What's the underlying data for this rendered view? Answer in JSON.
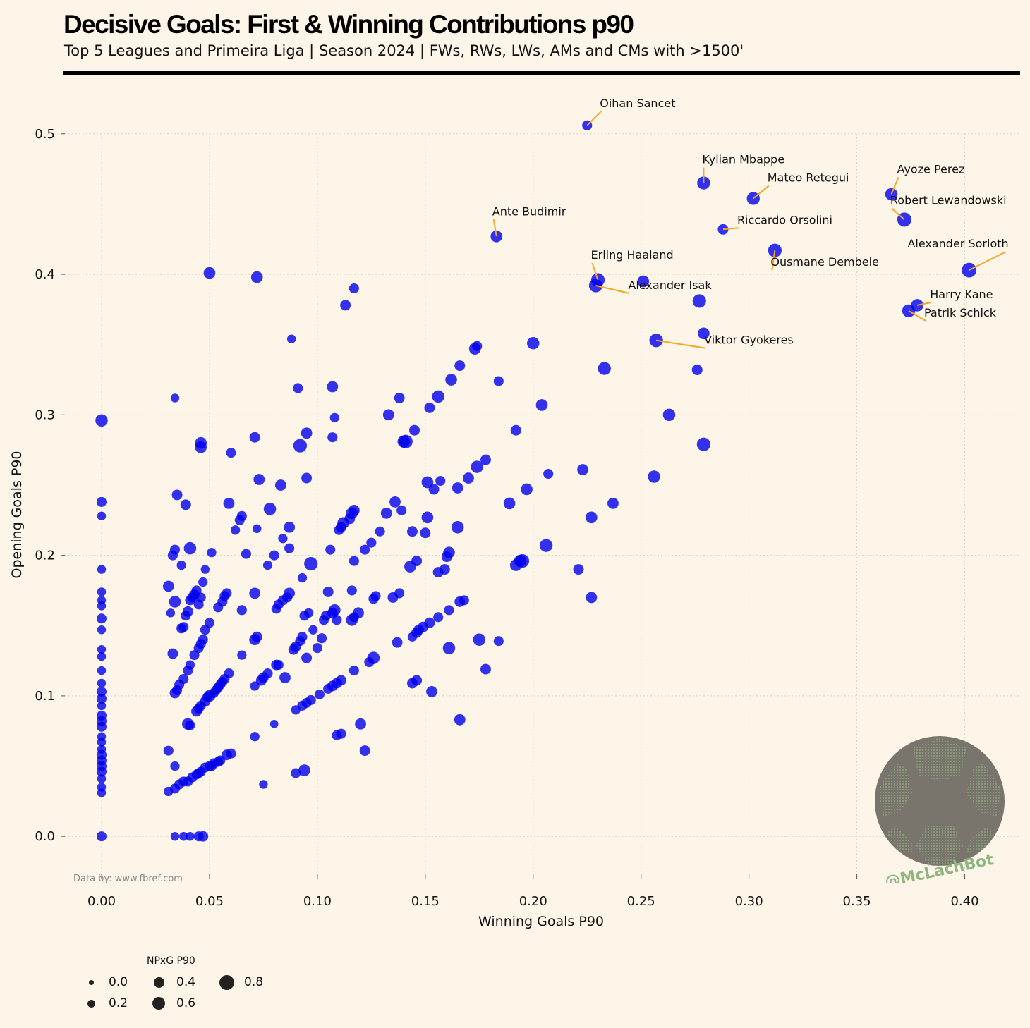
{
  "title": "Decisive Goals: First & Winning Contributions p90",
  "subtitle": "Top 5 Leagues and Primeira Liga | Season 2024 | FWs, RWs, LWs, AMs and CMs with >1500'",
  "source": "Data by: www.fbref.com",
  "watermark": "@McLachBot",
  "colors": {
    "background": "#fdf5e7",
    "points": "#0000ee",
    "annotation_line": "#f5a623",
    "logo": "#7a756c",
    "logo_text": "#8fb581"
  },
  "chart_data": {
    "type": "scatter",
    "xlabel": "Winning Goals P90",
    "ylabel": "Opening Goals P90",
    "xlim": [
      -0.017,
      0.425
    ],
    "ylim": [
      -0.027,
      0.53
    ],
    "xticks": [
      "0.00",
      "0.05",
      "0.10",
      "0.15",
      "0.20",
      "0.25",
      "0.30",
      "0.35",
      "0.40"
    ],
    "yticks": [
      "0.0",
      "0.1",
      "0.2",
      "0.3",
      "0.4",
      "0.5"
    ],
    "grid": true,
    "size_legend": {
      "title": "NPxG P90",
      "entries": [
        "0.0",
        "0.2",
        "0.4",
        "0.6",
        "0.8"
      ],
      "placement": "below-left"
    },
    "labeled_points": [
      {
        "name": "Oihan Sancet",
        "x": 0.225,
        "y": 0.506,
        "s": 0.3
      },
      {
        "name": "Kylian Mbappe",
        "x": 0.279,
        "y": 0.465,
        "s": 0.55
      },
      {
        "name": "Mateo Retegui",
        "x": 0.302,
        "y": 0.454,
        "s": 0.55
      },
      {
        "name": "Ayoze Perez",
        "x": 0.366,
        "y": 0.457,
        "s": 0.5
      },
      {
        "name": "Robert Lewandowski",
        "x": 0.372,
        "y": 0.439,
        "s": 0.65
      },
      {
        "name": "Ante Budimir",
        "x": 0.183,
        "y": 0.427,
        "s": 0.45
      },
      {
        "name": "Riccardo Orsolini",
        "x": 0.288,
        "y": 0.432,
        "s": 0.35
      },
      {
        "name": "Ousmane Dembele",
        "x": 0.312,
        "y": 0.417,
        "s": 0.6
      },
      {
        "name": "Alexander Sorloth",
        "x": 0.402,
        "y": 0.403,
        "s": 0.7
      },
      {
        "name": "Erling Haaland",
        "x": 0.23,
        "y": 0.396,
        "s": 0.6
      },
      {
        "name": "Alexander Isak",
        "x": 0.229,
        "y": 0.392,
        "s": 0.6
      },
      {
        "name": "Harry Kane",
        "x": 0.378,
        "y": 0.378,
        "s": 0.5
      },
      {
        "name": "Patrik Schick",
        "x": 0.374,
        "y": 0.374,
        "s": 0.55
      },
      {
        "name": "Viktor Gyokeres",
        "x": 0.257,
        "y": 0.353,
        "s": 0.6
      }
    ],
    "points": [
      [
        0.0,
        0.0,
        0.3
      ],
      [
        0.0,
        0.031,
        0.2
      ],
      [
        0.0,
        0.035,
        0.2
      ],
      [
        0.0,
        0.041,
        0.2
      ],
      [
        0.0,
        0.046,
        0.3
      ],
      [
        0.0,
        0.05,
        0.3
      ],
      [
        0.0,
        0.054,
        0.3
      ],
      [
        0.0,
        0.058,
        0.3
      ],
      [
        0.0,
        0.062,
        0.2
      ],
      [
        0.0,
        0.067,
        0.2
      ],
      [
        0.0,
        0.071,
        0.2
      ],
      [
        0.0,
        0.078,
        0.3
      ],
      [
        0.0,
        0.082,
        0.3
      ],
      [
        0.0,
        0.086,
        0.3
      ],
      [
        0.0,
        0.093,
        0.2
      ],
      [
        0.0,
        0.098,
        0.3
      ],
      [
        0.0,
        0.103,
        0.3
      ],
      [
        0.0,
        0.109,
        0.2
      ],
      [
        0.0,
        0.118,
        0.2
      ],
      [
        0.0,
        0.128,
        0.2
      ],
      [
        0.0,
        0.133,
        0.2
      ],
      [
        0.0,
        0.147,
        0.2
      ],
      [
        0.0,
        0.155,
        0.3
      ],
      [
        0.0,
        0.164,
        0.2
      ],
      [
        0.0,
        0.168,
        0.2
      ],
      [
        0.0,
        0.174,
        0.2
      ],
      [
        0.0,
        0.19,
        0.2
      ],
      [
        0.0,
        0.228,
        0.2
      ],
      [
        0.0,
        0.238,
        0.3
      ],
      [
        0.0,
        0.296,
        0.5
      ],
      [
        0.034,
        0.312,
        0.2
      ],
      [
        0.046,
        0.28,
        0.45
      ],
      [
        0.046,
        0.277,
        0.45
      ],
      [
        0.05,
        0.401,
        0.45
      ],
      [
        0.072,
        0.398,
        0.45
      ],
      [
        0.088,
        0.354,
        0.2
      ],
      [
        0.091,
        0.319,
        0.3
      ],
      [
        0.092,
        0.278,
        0.6
      ],
      [
        0.095,
        0.287,
        0.4
      ],
      [
        0.095,
        0.255,
        0.35
      ],
      [
        0.107,
        0.32,
        0.4
      ],
      [
        0.107,
        0.284,
        0.3
      ],
      [
        0.108,
        0.298,
        0.25
      ],
      [
        0.113,
        0.378,
        0.35
      ],
      [
        0.117,
        0.39,
        0.3
      ],
      [
        0.06,
        0.273,
        0.3
      ],
      [
        0.071,
        0.284,
        0.35
      ],
      [
        0.073,
        0.254,
        0.4
      ],
      [
        0.083,
        0.25,
        0.4
      ],
      [
        0.035,
        0.243,
        0.35
      ],
      [
        0.039,
        0.236,
        0.35
      ],
      [
        0.059,
        0.237,
        0.4
      ],
      [
        0.065,
        0.228,
        0.3
      ],
      [
        0.072,
        0.219,
        0.2
      ],
      [
        0.078,
        0.233,
        0.5
      ],
      [
        0.084,
        0.212,
        0.25
      ],
      [
        0.087,
        0.205,
        0.3
      ],
      [
        0.064,
        0.225,
        0.3
      ],
      [
        0.062,
        0.218,
        0.25
      ],
      [
        0.031,
        0.178,
        0.4
      ],
      [
        0.034,
        0.167,
        0.45
      ],
      [
        0.033,
        0.2,
        0.3
      ],
      [
        0.034,
        0.204,
        0.3
      ],
      [
        0.037,
        0.193,
        0.25
      ],
      [
        0.041,
        0.205,
        0.5
      ],
      [
        0.048,
        0.19,
        0.2
      ],
      [
        0.047,
        0.181,
        0.25
      ],
      [
        0.051,
        0.202,
        0.25
      ],
      [
        0.067,
        0.201,
        0.3
      ],
      [
        0.08,
        0.2,
        0.3
      ],
      [
        0.087,
        0.22,
        0.4
      ],
      [
        0.093,
        0.184,
        0.25
      ],
      [
        0.097,
        0.194,
        0.6
      ],
      [
        0.077,
        0.193,
        0.25
      ],
      [
        0.032,
        0.159,
        0.2
      ],
      [
        0.033,
        0.13,
        0.35
      ],
      [
        0.037,
        0.148,
        0.3
      ],
      [
        0.038,
        0.149,
        0.3
      ],
      [
        0.039,
        0.157,
        0.3
      ],
      [
        0.04,
        0.16,
        0.35
      ],
      [
        0.041,
        0.168,
        0.3
      ],
      [
        0.042,
        0.17,
        0.3
      ],
      [
        0.043,
        0.172,
        0.35
      ],
      [
        0.044,
        0.175,
        0.3
      ],
      [
        0.045,
        0.165,
        0.3
      ],
      [
        0.046,
        0.17,
        0.3
      ],
      [
        0.041,
        0.122,
        0.25
      ],
      [
        0.043,
        0.129,
        0.3
      ],
      [
        0.045,
        0.134,
        0.3
      ],
      [
        0.046,
        0.137,
        0.3
      ],
      [
        0.047,
        0.14,
        0.3
      ],
      [
        0.048,
        0.147,
        0.3
      ],
      [
        0.05,
        0.152,
        0.3
      ],
      [
        0.054,
        0.163,
        0.3
      ],
      [
        0.056,
        0.167,
        0.3
      ],
      [
        0.057,
        0.171,
        0.3
      ],
      [
        0.058,
        0.173,
        0.3
      ],
      [
        0.065,
        0.161,
        0.3
      ],
      [
        0.071,
        0.173,
        0.4
      ],
      [
        0.071,
        0.14,
        0.4
      ],
      [
        0.072,
        0.142,
        0.35
      ],
      [
        0.034,
        0.102,
        0.35
      ],
      [
        0.035,
        0.104,
        0.3
      ],
      [
        0.036,
        0.108,
        0.3
      ],
      [
        0.038,
        0.112,
        0.3
      ],
      [
        0.04,
        0.118,
        0.3
      ],
      [
        0.044,
        0.089,
        0.35
      ],
      [
        0.045,
        0.091,
        0.3
      ],
      [
        0.046,
        0.093,
        0.3
      ],
      [
        0.048,
        0.096,
        0.35
      ],
      [
        0.049,
        0.099,
        0.3
      ],
      [
        0.05,
        0.1,
        0.45
      ],
      [
        0.052,
        0.102,
        0.3
      ],
      [
        0.053,
        0.104,
        0.3
      ],
      [
        0.054,
        0.106,
        0.3
      ],
      [
        0.055,
        0.108,
        0.3
      ],
      [
        0.056,
        0.11,
        0.3
      ],
      [
        0.057,
        0.112,
        0.3
      ],
      [
        0.059,
        0.116,
        0.3
      ],
      [
        0.065,
        0.129,
        0.25
      ],
      [
        0.071,
        0.107,
        0.25
      ],
      [
        0.074,
        0.111,
        0.35
      ],
      [
        0.075,
        0.113,
        0.35
      ],
      [
        0.077,
        0.116,
        0.3
      ],
      [
        0.081,
        0.122,
        0.35
      ],
      [
        0.082,
        0.122,
        0.3
      ],
      [
        0.085,
        0.113,
        0.4
      ],
      [
        0.081,
        0.162,
        0.3
      ],
      [
        0.082,
        0.165,
        0.3
      ],
      [
        0.084,
        0.168,
        0.3
      ],
      [
        0.086,
        0.17,
        0.3
      ],
      [
        0.087,
        0.173,
        0.4
      ],
      [
        0.089,
        0.133,
        0.35
      ],
      [
        0.09,
        0.135,
        0.35
      ],
      [
        0.092,
        0.139,
        0.3
      ],
      [
        0.093,
        0.142,
        0.3
      ],
      [
        0.094,
        0.157,
        0.3
      ],
      [
        0.095,
        0.127,
        0.35
      ],
      [
        0.096,
        0.159,
        0.25
      ],
      [
        0.098,
        0.147,
        0.25
      ],
      [
        0.1,
        0.134,
        0.3
      ],
      [
        0.102,
        0.141,
        0.3
      ],
      [
        0.103,
        0.154,
        0.3
      ],
      [
        0.104,
        0.157,
        0.3
      ],
      [
        0.105,
        0.174,
        0.35
      ],
      [
        0.107,
        0.159,
        0.35
      ],
      [
        0.108,
        0.161,
        0.45
      ],
      [
        0.109,
        0.154,
        0.3
      ],
      [
        0.031,
        0.061,
        0.3
      ],
      [
        0.034,
        0.05,
        0.25
      ],
      [
        0.031,
        0.032,
        0.25
      ],
      [
        0.034,
        0.034,
        0.3
      ],
      [
        0.036,
        0.037,
        0.3
      ],
      [
        0.038,
        0.039,
        0.3
      ],
      [
        0.04,
        0.039,
        0.3
      ],
      [
        0.042,
        0.042,
        0.3
      ],
      [
        0.044,
        0.044,
        0.3
      ],
      [
        0.045,
        0.045,
        0.3
      ],
      [
        0.046,
        0.046,
        0.3
      ],
      [
        0.048,
        0.049,
        0.3
      ],
      [
        0.05,
        0.05,
        0.3
      ],
      [
        0.051,
        0.05,
        0.3
      ],
      [
        0.052,
        0.052,
        0.3
      ],
      [
        0.054,
        0.053,
        0.3
      ],
      [
        0.055,
        0.054,
        0.3
      ],
      [
        0.058,
        0.058,
        0.35
      ],
      [
        0.06,
        0.059,
        0.3
      ],
      [
        0.04,
        0.08,
        0.45
      ],
      [
        0.041,
        0.079,
        0.3
      ],
      [
        0.071,
        0.071,
        0.25
      ],
      [
        0.08,
        0.08,
        0.15
      ],
      [
        0.075,
        0.037,
        0.2
      ],
      [
        0.034,
        0.0,
        0.2
      ],
      [
        0.038,
        0.0,
        0.2
      ],
      [
        0.041,
        0.0,
        0.2
      ],
      [
        0.045,
        0.0,
        0.3
      ],
      [
        0.047,
        0.0,
        0.35
      ],
      [
        0.09,
        0.045,
        0.3
      ],
      [
        0.094,
        0.047,
        0.45
      ],
      [
        0.09,
        0.09,
        0.25
      ],
      [
        0.093,
        0.093,
        0.3
      ],
      [
        0.095,
        0.095,
        0.3
      ],
      [
        0.097,
        0.097,
        0.3
      ],
      [
        0.101,
        0.101,
        0.3
      ],
      [
        0.105,
        0.105,
        0.3
      ],
      [
        0.107,
        0.107,
        0.35
      ],
      [
        0.109,
        0.109,
        0.35
      ],
      [
        0.111,
        0.111,
        0.35
      ],
      [
        0.109,
        0.072,
        0.3
      ],
      [
        0.111,
        0.073,
        0.3
      ],
      [
        0.12,
        0.08,
        0.4
      ],
      [
        0.122,
        0.061,
        0.35
      ],
      [
        0.117,
        0.118,
        0.3
      ],
      [
        0.124,
        0.124,
        0.3
      ],
      [
        0.126,
        0.127,
        0.5
      ],
      [
        0.137,
        0.138,
        0.35
      ],
      [
        0.116,
        0.154,
        0.45
      ],
      [
        0.117,
        0.156,
        0.3
      ],
      [
        0.119,
        0.159,
        0.4
      ],
      [
        0.116,
        0.175,
        0.3
      ],
      [
        0.126,
        0.169,
        0.3
      ],
      [
        0.127,
        0.171,
        0.3
      ],
      [
        0.135,
        0.17,
        0.35
      ],
      [
        0.138,
        0.173,
        0.3
      ],
      [
        0.106,
        0.204,
        0.3
      ],
      [
        0.11,
        0.218,
        0.3
      ],
      [
        0.111,
        0.22,
        0.35
      ],
      [
        0.112,
        0.223,
        0.45
      ],
      [
        0.115,
        0.226,
        0.35
      ],
      [
        0.116,
        0.23,
        0.45
      ],
      [
        0.117,
        0.232,
        0.4
      ],
      [
        0.117,
        0.196,
        0.3
      ],
      [
        0.122,
        0.204,
        0.3
      ],
      [
        0.125,
        0.209,
        0.3
      ],
      [
        0.129,
        0.217,
        0.3
      ],
      [
        0.132,
        0.23,
        0.4
      ],
      [
        0.136,
        0.238,
        0.4
      ],
      [
        0.139,
        0.232,
        0.3
      ],
      [
        0.133,
        0.3,
        0.4
      ],
      [
        0.138,
        0.312,
        0.35
      ],
      [
        0.14,
        0.281,
        0.5
      ],
      [
        0.141,
        0.281,
        0.6
      ],
      [
        0.145,
        0.289,
        0.35
      ],
      [
        0.152,
        0.305,
        0.35
      ],
      [
        0.156,
        0.313,
        0.5
      ],
      [
        0.162,
        0.325,
        0.45
      ],
      [
        0.166,
        0.335,
        0.35
      ],
      [
        0.173,
        0.347,
        0.45
      ],
      [
        0.174,
        0.349,
        0.3
      ],
      [
        0.184,
        0.324,
        0.3
      ],
      [
        0.143,
        0.192,
        0.45
      ],
      [
        0.146,
        0.196,
        0.35
      ],
      [
        0.15,
        0.216,
        0.35
      ],
      [
        0.151,
        0.227,
        0.45
      ],
      [
        0.151,
        0.252,
        0.45
      ],
      [
        0.154,
        0.247,
        0.35
      ],
      [
        0.157,
        0.253,
        0.3
      ],
      [
        0.16,
        0.199,
        0.35
      ],
      [
        0.161,
        0.202,
        0.45
      ],
      [
        0.165,
        0.248,
        0.4
      ],
      [
        0.165,
        0.22,
        0.5
      ],
      [
        0.17,
        0.255,
        0.4
      ],
      [
        0.174,
        0.263,
        0.5
      ],
      [
        0.178,
        0.268,
        0.35
      ],
      [
        0.156,
        0.188,
        0.35
      ],
      [
        0.159,
        0.19,
        0.35
      ],
      [
        0.144,
        0.217,
        0.35
      ],
      [
        0.144,
        0.142,
        0.25
      ],
      [
        0.146,
        0.145,
        0.35
      ],
      [
        0.147,
        0.147,
        0.35
      ],
      [
        0.149,
        0.149,
        0.35
      ],
      [
        0.152,
        0.152,
        0.35
      ],
      [
        0.156,
        0.156,
        0.3
      ],
      [
        0.161,
        0.161,
        0.3
      ],
      [
        0.166,
        0.167,
        0.35
      ],
      [
        0.168,
        0.168,
        0.3
      ],
      [
        0.144,
        0.109,
        0.35
      ],
      [
        0.146,
        0.111,
        0.35
      ],
      [
        0.153,
        0.103,
        0.4
      ],
      [
        0.161,
        0.134,
        0.5
      ],
      [
        0.166,
        0.083,
        0.4
      ],
      [
        0.175,
        0.14,
        0.5
      ],
      [
        0.178,
        0.119,
        0.35
      ],
      [
        0.184,
        0.139,
        0.3
      ],
      [
        0.189,
        0.237,
        0.45
      ],
      [
        0.192,
        0.193,
        0.45
      ],
      [
        0.192,
        0.289,
        0.35
      ],
      [
        0.194,
        0.196,
        0.5
      ],
      [
        0.195,
        0.196,
        0.6
      ],
      [
        0.197,
        0.247,
        0.45
      ],
      [
        0.2,
        0.351,
        0.5
      ],
      [
        0.204,
        0.307,
        0.45
      ],
      [
        0.206,
        0.207,
        0.55
      ],
      [
        0.207,
        0.258,
        0.3
      ],
      [
        0.221,
        0.19,
        0.35
      ],
      [
        0.223,
        0.261,
        0.4
      ],
      [
        0.227,
        0.227,
        0.45
      ],
      [
        0.227,
        0.17,
        0.4
      ],
      [
        0.233,
        0.333,
        0.55
      ],
      [
        0.237,
        0.237,
        0.4
      ],
      [
        0.251,
        0.395,
        0.45
      ],
      [
        0.256,
        0.256,
        0.5
      ],
      [
        0.263,
        0.3,
        0.5
      ],
      [
        0.276,
        0.332,
        0.35
      ],
      [
        0.277,
        0.381,
        0.6
      ],
      [
        0.279,
        0.358,
        0.45
      ],
      [
        0.279,
        0.279,
        0.6
      ]
    ]
  }
}
